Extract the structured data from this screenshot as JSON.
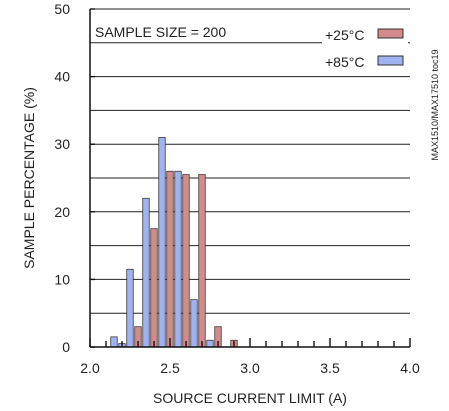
{
  "chart_data": {
    "type": "bar",
    "xlabel": "SOURCE CURRENT LIMIT (A)",
    "ylabel": "SAMPLE PERCENTAGE (%)",
    "xlim": [
      2.0,
      4.0
    ],
    "ylim": [
      0,
      50
    ],
    "x_ticks": [
      "2.0",
      "2.5",
      "3.0",
      "3.5",
      "4.0"
    ],
    "y_ticks": [
      "0",
      "10",
      "20",
      "30",
      "40",
      "50"
    ],
    "grid": "horizontal",
    "annotation": "SAMPLE SIZE = 200",
    "side_code": "MAX1510/MAX17510 toc19",
    "legend_position": "top-right",
    "series": [
      {
        "name": "+25°C",
        "color": "#d48a8a",
        "x": [
          2.3,
          2.4,
          2.5,
          2.6,
          2.7,
          2.8,
          2.9
        ],
        "values": [
          3,
          17.5,
          26,
          25.5,
          25.5,
          3,
          1
        ]
      },
      {
        "name": "+85°C",
        "color": "#9fb3f2",
        "x": [
          2.15,
          2.2,
          2.25,
          2.35,
          2.45,
          2.55,
          2.65,
          2.75
        ],
        "values": [
          1.5,
          0.5,
          11.5,
          22,
          31,
          26,
          7,
          1
        ]
      }
    ]
  }
}
